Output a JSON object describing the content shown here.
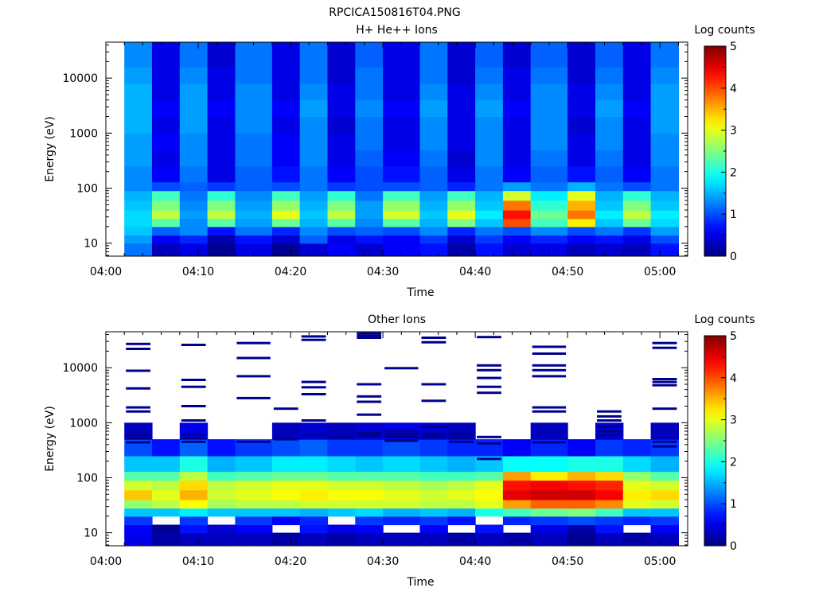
{
  "figure_title": "RPCICA150816T04.PNG",
  "chart_data": [
    {
      "type": "heatmap",
      "title": "H+ He++ Ions",
      "xlabel": "Time",
      "ylabel": "Energy (eV)",
      "y_scale": "log",
      "ylim": [
        5.8,
        45000
      ],
      "xlim": [
        "04:00",
        "05:03"
      ],
      "x_ticks": [
        "04:00",
        "04:10",
        "04:20",
        "04:30",
        "04:40",
        "04:50",
        "05:00"
      ],
      "y_ticks": [
        "10",
        "100",
        "1000",
        "10000"
      ],
      "colorbar": {
        "label": "Log counts",
        "min": 0,
        "max": 5,
        "ticks": [
          "0",
          "1",
          "2",
          "3",
          "4",
          "5"
        ]
      },
      "time_bins": [
        "04:02-04:05",
        "04:05-04:08",
        "04:08-04:11",
        "04:11-04:14",
        "04:14-04:18",
        "04:18-04:21",
        "04:21-04:24",
        "04:24-04:27",
        "04:27-04:30",
        "04:30-04:34",
        "04:34-04:37",
        "04:37-04:40",
        "04:40-04:43",
        "04:43-04:46",
        "04:46-04:50",
        "04:50-04:53",
        "04:53-04:56",
        "04:56-04:59",
        "04:59-05:02"
      ],
      "energy_bands_eV": [
        [
          6,
          10
        ],
        [
          10,
          14
        ],
        [
          14,
          20
        ],
        [
          20,
          28
        ],
        [
          28,
          40
        ],
        [
          40,
          60
        ],
        [
          60,
          90
        ],
        [
          90,
          130
        ],
        [
          130,
          250
        ],
        [
          250,
          500
        ],
        [
          500,
          1000
        ],
        [
          1000,
          2000
        ],
        [
          2000,
          4000
        ],
        [
          4000,
          8000
        ],
        [
          8000,
          16000
        ],
        [
          16000,
          45000
        ]
      ],
      "log_counts": [
        [
          1.2,
          0.3,
          0.5,
          0.1,
          0.5,
          0.1,
          0.4,
          0.6,
          0.4,
          0.6,
          0.7,
          0.2,
          0.7,
          0.4,
          0.5,
          0.3,
          0.4,
          0.3,
          0.7
        ],
        [
          1.4,
          0.6,
          0.8,
          0.2,
          0.7,
          0.4,
          1.1,
          0.5,
          0.7,
          0.6,
          0.9,
          0.4,
          0.9,
          0.6,
          0.8,
          0.6,
          0.7,
          0.5,
          1.0
        ],
        [
          1.6,
          1.1,
          1.3,
          0.7,
          1.2,
          0.8,
          1.3,
          1.0,
          1.1,
          1.0,
          1.3,
          0.8,
          1.2,
          1.0,
          1.3,
          1.0,
          1.2,
          0.9,
          1.4
        ],
        [
          1.7,
          2.3,
          1.3,
          2.3,
          1.4,
          2.4,
          1.5,
          2.3,
          1.3,
          2.3,
          1.5,
          2.5,
          1.6,
          4.0,
          2.2,
          3.2,
          1.6,
          2.4,
          1.7
        ],
        [
          1.7,
          2.8,
          1.4,
          2.8,
          1.5,
          3.0,
          1.6,
          2.8,
          1.4,
          2.9,
          1.6,
          3.0,
          1.8,
          4.3,
          2.4,
          3.8,
          1.8,
          2.8,
          1.8
        ],
        [
          1.6,
          2.5,
          1.3,
          2.5,
          1.4,
          2.6,
          1.5,
          2.5,
          1.4,
          2.6,
          1.5,
          2.6,
          1.6,
          3.8,
          2.1,
          3.5,
          1.6,
          2.5,
          1.6
        ],
        [
          1.5,
          2.2,
          1.2,
          2.1,
          1.3,
          2.2,
          1.4,
          2.1,
          1.2,
          2.2,
          1.4,
          2.2,
          1.5,
          2.9,
          1.8,
          3.0,
          1.5,
          2.1,
          1.5
        ],
        [
          1.3,
          1.0,
          1.1,
          0.9,
          1.1,
          1.0,
          1.2,
          0.9,
          1.0,
          1.0,
          1.1,
          0.8,
          1.2,
          1.4,
          1.2,
          1.5,
          1.2,
          1.0,
          1.2
        ],
        [
          1.3,
          0.6,
          1.2,
          0.5,
          1.1,
          0.7,
          1.2,
          0.6,
          1.0,
          0.7,
          1.1,
          0.5,
          1.2,
          0.6,
          1.1,
          0.7,
          1.1,
          0.6,
          1.2
        ],
        [
          1.4,
          0.5,
          1.3,
          0.5,
          1.2,
          0.6,
          1.3,
          0.5,
          1.1,
          0.6,
          1.2,
          0.4,
          1.3,
          0.5,
          1.2,
          0.5,
          1.2,
          0.5,
          1.3
        ],
        [
          1.4,
          0.6,
          1.3,
          0.5,
          1.2,
          0.6,
          1.3,
          0.5,
          1.2,
          0.5,
          1.3,
          0.5,
          1.3,
          0.5,
          1.3,
          0.5,
          1.3,
          0.5,
          1.3
        ],
        [
          1.5,
          0.5,
          1.4,
          0.5,
          1.3,
          0.5,
          1.3,
          0.4,
          1.2,
          0.5,
          1.3,
          0.5,
          1.3,
          0.5,
          1.3,
          0.4,
          1.3,
          0.5,
          1.4
        ],
        [
          1.5,
          0.6,
          1.4,
          0.6,
          1.3,
          0.6,
          1.4,
          0.5,
          1.3,
          0.6,
          1.4,
          0.5,
          1.4,
          0.6,
          1.3,
          0.5,
          1.4,
          0.6,
          1.4
        ],
        [
          1.5,
          0.5,
          1.4,
          0.5,
          1.3,
          0.5,
          1.3,
          0.5,
          1.2,
          0.5,
          1.3,
          0.5,
          1.3,
          0.5,
          1.3,
          0.5,
          1.3,
          0.5,
          1.4
        ],
        [
          1.4,
          0.5,
          1.3,
          0.5,
          1.2,
          0.5,
          1.2,
          0.4,
          1.2,
          0.5,
          1.2,
          0.4,
          1.2,
          0.5,
          1.2,
          0.4,
          1.2,
          0.5,
          1.3
        ],
        [
          1.3,
          0.5,
          1.2,
          0.4,
          1.2,
          0.5,
          1.2,
          0.4,
          1.1,
          0.5,
          1.2,
          0.4,
          1.1,
          0.4,
          1.1,
          0.4,
          1.1,
          0.5,
          1.2
        ]
      ]
    },
    {
      "type": "heatmap",
      "title": "Other Ions",
      "xlabel": "Time",
      "ylabel": "Energy (eV)",
      "y_scale": "log",
      "ylim": [
        5.8,
        45000
      ],
      "xlim": [
        "04:00",
        "05:03"
      ],
      "x_ticks": [
        "04:00",
        "04:10",
        "04:20",
        "04:30",
        "04:40",
        "04:50",
        "05:00"
      ],
      "y_ticks": [
        "10",
        "100",
        "1000",
        "10000"
      ],
      "colorbar": {
        "label": "Log counts",
        "min": 0,
        "max": 5,
        "ticks": [
          "0",
          "1",
          "2",
          "3",
          "4",
          "5"
        ]
      },
      "time_bins": [
        "04:02-04:05",
        "04:05-04:08",
        "04:08-04:11",
        "04:11-04:14",
        "04:14-04:18",
        "04:18-04:21",
        "04:21-04:24",
        "04:24-04:27",
        "04:27-04:30",
        "04:30-04:34",
        "04:34-04:37",
        "04:37-04:40",
        "04:40-04:43",
        "04:43-04:46",
        "04:46-04:50",
        "04:50-04:53",
        "04:53-04:56",
        "04:56-04:59",
        "04:59-05:02"
      ],
      "energy_bands_eV": [
        [
          6,
          10
        ],
        [
          10,
          14
        ],
        [
          14,
          20
        ],
        [
          20,
          28
        ],
        [
          28,
          40
        ],
        [
          40,
          60
        ],
        [
          60,
          90
        ],
        [
          90,
          130
        ],
        [
          130,
          250
        ],
        [
          250,
          500
        ],
        [
          500,
          1000
        ],
        [
          1000,
          2000
        ],
        [
          2000,
          4000
        ],
        [
          4000,
          8000
        ],
        [
          8000,
          16000
        ],
        [
          16000,
          45000
        ]
      ],
      "log_counts": [
        [
          0.5,
          0.2,
          0.3,
          0.3,
          0.3,
          0.2,
          0.3,
          0.2,
          0.3,
          0.3,
          0.3,
          0.2,
          0.3,
          0.2,
          0.3,
          0.1,
          0.3,
          0.2,
          0.3
        ],
        [
          0.6,
          0.1,
          0.7,
          0.4,
          0.6,
          null,
          0.7,
          0.5,
          0.6,
          null,
          0.6,
          null,
          0.7,
          null,
          0.5,
          0.2,
          0.7,
          null,
          0.6
        ],
        [
          0.9,
          null,
          0.9,
          null,
          0.9,
          0.6,
          0.8,
          null,
          0.9,
          0.8,
          0.9,
          0.7,
          null,
          0.8,
          0.9,
          1.0,
          0.9,
          0.8,
          0.9
        ],
        [
          1.6,
          1.6,
          1.8,
          1.6,
          1.6,
          1.6,
          1.5,
          1.6,
          1.7,
          1.5,
          1.6,
          1.5,
          2.0,
          2.2,
          2.4,
          2.5,
          2.2,
          1.6,
          1.6
        ],
        [
          2.6,
          2.8,
          3.1,
          2.7,
          2.8,
          2.8,
          2.9,
          2.9,
          2.9,
          2.9,
          2.8,
          2.8,
          3.0,
          3.6,
          3.9,
          3.9,
          3.7,
          3.0,
          2.9
        ],
        [
          3.4,
          3.0,
          3.5,
          2.9,
          3.0,
          3.1,
          3.2,
          3.1,
          3.1,
          3.0,
          2.9,
          3.0,
          3.1,
          4.5,
          4.6,
          4.6,
          4.4,
          3.2,
          3.3
        ],
        [
          2.9,
          2.8,
          3.3,
          2.8,
          2.9,
          3.0,
          3.0,
          2.9,
          2.9,
          2.8,
          2.7,
          2.8,
          3.0,
          4.3,
          4.4,
          4.3,
          4.2,
          3.0,
          2.9
        ],
        [
          2.3,
          2.3,
          2.8,
          2.2,
          2.3,
          2.4,
          2.4,
          2.3,
          2.3,
          2.3,
          2.2,
          2.2,
          2.3,
          3.6,
          3.2,
          3.5,
          3.3,
          2.6,
          2.3
        ],
        [
          1.6,
          1.6,
          2.0,
          1.5,
          1.6,
          1.8,
          1.8,
          1.7,
          1.6,
          1.7,
          1.6,
          1.5,
          1.6,
          1.9,
          1.9,
          2.0,
          2.0,
          1.7,
          1.5
        ],
        [
          1.0,
          0.7,
          1.1,
          0.7,
          0.9,
          1.0,
          1.1,
          0.9,
          0.9,
          1.0,
          0.9,
          0.8,
          0.8,
          0.6,
          0.8,
          0.6,
          0.9,
          0.8,
          0.9
        ],
        [
          0.3,
          null,
          0.5,
          null,
          null,
          0.3,
          0.4,
          0.3,
          0.4,
          0.5,
          0.4,
          0.3,
          null,
          null,
          0.3,
          null,
          0.4,
          null,
          0.3
        ],
        [
          null,
          null,
          null,
          null,
          null,
          null,
          null,
          null,
          null,
          null,
          null,
          null,
          null,
          null,
          null,
          null,
          null,
          null,
          null
        ],
        [
          null,
          null,
          null,
          null,
          null,
          null,
          null,
          null,
          null,
          null,
          null,
          null,
          null,
          null,
          null,
          null,
          null,
          null,
          null
        ],
        [
          null,
          null,
          null,
          null,
          null,
          null,
          null,
          null,
          null,
          null,
          null,
          null,
          null,
          null,
          null,
          null,
          null,
          null,
          null
        ],
        [
          null,
          null,
          null,
          null,
          null,
          null,
          null,
          null,
          null,
          null,
          null,
          null,
          null,
          null,
          null,
          null,
          null,
          null,
          null
        ],
        [
          null,
          null,
          null,
          null,
          null,
          null,
          null,
          null,
          null,
          null,
          null,
          null,
          null,
          null,
          null,
          null,
          null,
          null,
          null
        ]
      ],
      "sparse_line_energies_eV": [
        [
          600,
          520,
          440,
          1600,
          1900,
          4200,
          8800,
          22000,
          27000
        ],
        [],
        [
          600,
          520,
          450,
          1100,
          2000,
          4500,
          6000,
          26000
        ],
        [],
        [
          450,
          2800,
          7000,
          15000,
          28000
        ],
        [
          500,
          1800
        ],
        [
          600,
          1100,
          3300,
          4400,
          5500,
          32000,
          37000
        ],
        [
          550
        ],
        [
          650,
          580,
          1400,
          2400,
          3000,
          5000,
          35000,
          38000,
          42000
        ],
        [
          700,
          620,
          550,
          470,
          9800
        ],
        [
          620,
          550,
          850,
          2500,
          5000,
          29000,
          35000
        ],
        [
          620,
          530,
          450
        ],
        [
          550,
          420,
          220,
          3500,
          4500,
          6500,
          9000,
          11000,
          36000
        ],
        [],
        [
          440,
          1600,
          1900,
          7000,
          9000,
          11000,
          18000,
          24000
        ],
        [],
        [
          1100,
          1300,
          1600,
          850,
          700,
          600
        ],
        [],
        [
          450,
          370,
          1800,
          4800,
          5500,
          6200,
          23000,
          28000
        ]
      ]
    }
  ]
}
